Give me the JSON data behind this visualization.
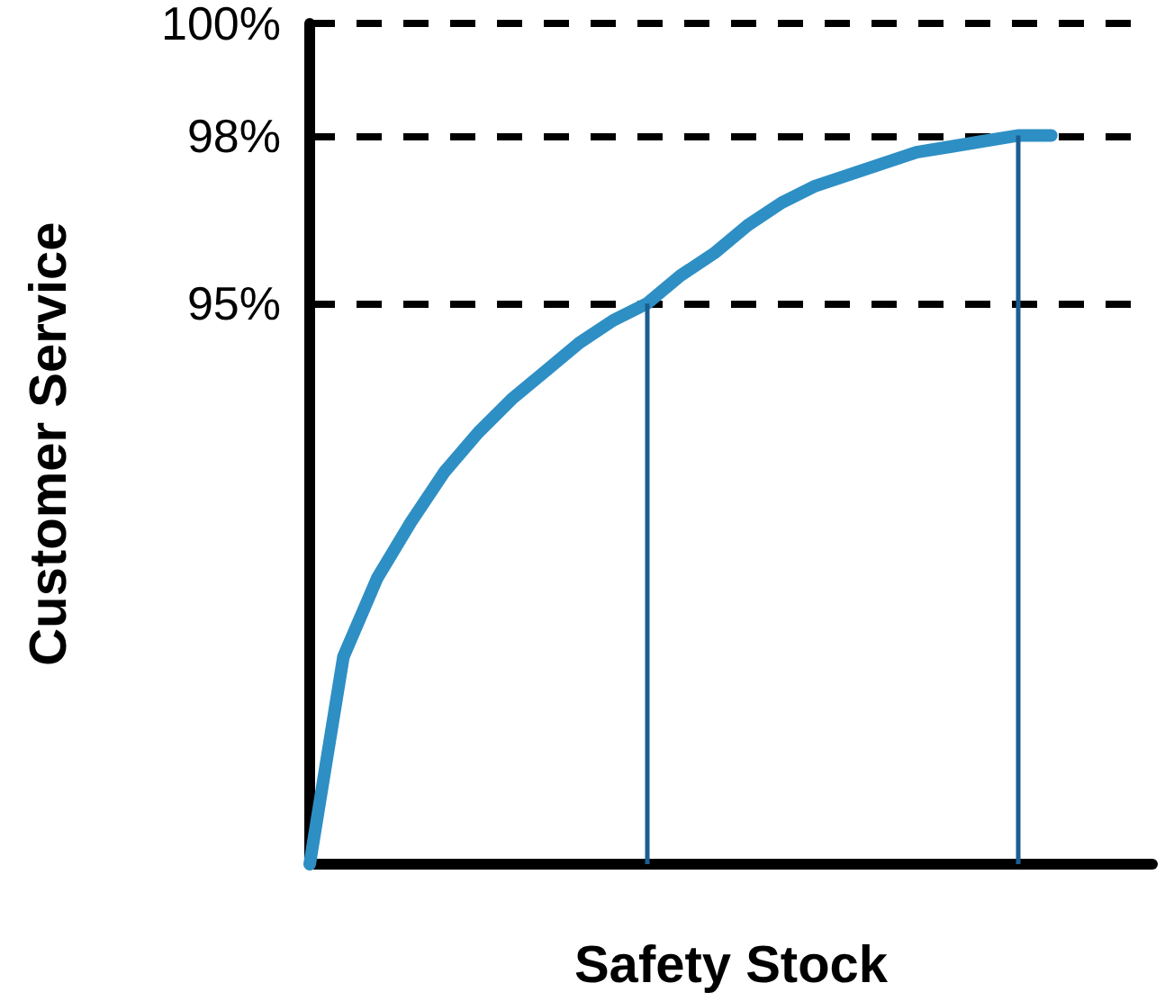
{
  "chart_data": {
    "type": "line",
    "xlabel": "Safety Stock",
    "ylabel": "Customer Service",
    "categories": [
      null,
      null,
      null,
      null,
      null,
      null,
      null,
      null,
      null,
      null,
      null,
      null,
      null,
      null,
      null,
      null,
      null,
      null,
      null,
      null,
      null,
      null,
      null,
      null,
      null,
      null
    ],
    "series": [
      {
        "color": "#2e8fc4",
        "values": [
          85,
          88.7,
          90.1,
          91.1,
          92,
          92.7,
          93.3,
          93.8,
          94.3,
          94.7,
          95,
          95.5,
          95.9,
          96.4,
          96.8,
          97.1,
          97.3,
          97.5,
          97.7,
          97.8,
          97.9,
          98,
          98,
          null,
          null,
          null
        ]
      }
    ],
    "ylim": [
      85,
      100
    ],
    "yticks": [
      {
        "value": 95,
        "label": "95%"
      },
      {
        "value": 98,
        "label": "98%"
      },
      {
        "value": 100,
        "label": "100%"
      }
    ],
    "tick_labels": "y",
    "grid": "y",
    "line_style": "solid"
  }
}
